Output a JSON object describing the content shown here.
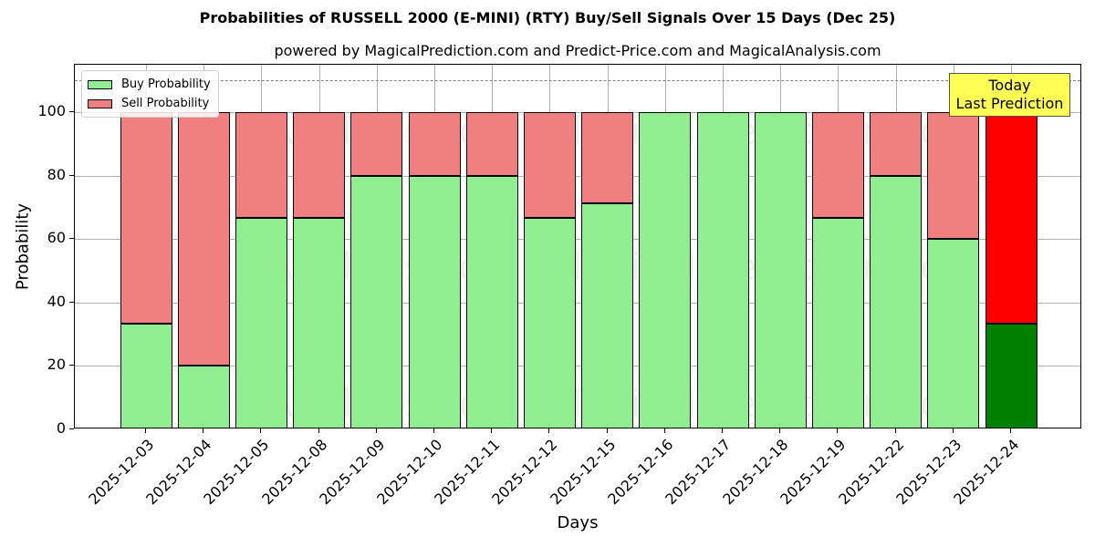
{
  "chart_data": {
    "type": "bar",
    "stacked": true,
    "title": "Probabilities of RUSSELL 2000 (E-MINI) (RTY) Buy/Sell Signals Over 15 Days (Dec 25)",
    "subtitle": "powered by MagicalPrediction.com and Predict-Price.com and MagicalAnalysis.com",
    "xlabel": "Days",
    "ylabel": "Probability",
    "ylim": [
      0,
      115
    ],
    "yticks": [
      0,
      20,
      40,
      60,
      80,
      100
    ],
    "grid": true,
    "reference_line": {
      "y": 110,
      "style": "dashed",
      "color": "#808080"
    },
    "categories": [
      "2025-12-03",
      "2025-12-04",
      "2025-12-05",
      "2025-12-08",
      "2025-12-09",
      "2025-12-10",
      "2025-12-11",
      "2025-12-12",
      "2025-12-15",
      "2025-12-16",
      "2025-12-17",
      "2025-12-18",
      "2025-12-19",
      "2025-12-22",
      "2025-12-23",
      "2025-12-24"
    ],
    "series": [
      {
        "name": "Buy Probability",
        "color": "#90ee90",
        "values": [
          33.33,
          20,
          66.67,
          66.67,
          80,
          80,
          80,
          66.67,
          71.43,
          100,
          100,
          100,
          66.67,
          80,
          60,
          33.33
        ]
      },
      {
        "name": "Sell Probability",
        "color": "#f08080",
        "values": [
          66.67,
          80,
          33.33,
          33.33,
          20,
          20,
          20,
          33.33,
          28.57,
          0,
          0,
          0,
          33.33,
          20,
          40,
          66.67
        ]
      }
    ],
    "highlight": {
      "index": 15,
      "buy_color": "#008000",
      "sell_color": "#ff0000",
      "annotation": "Today\nLast Prediction"
    },
    "legend": {
      "position": "upper left",
      "entries": [
        "Buy Probability",
        "Sell Probability"
      ]
    },
    "annotation": {
      "line1": "Today",
      "line2": "Last Prediction",
      "background": "#ffff55"
    },
    "watermarks": [
      "MagicalAnalysis.com",
      "MagicalPrediction.com"
    ]
  }
}
